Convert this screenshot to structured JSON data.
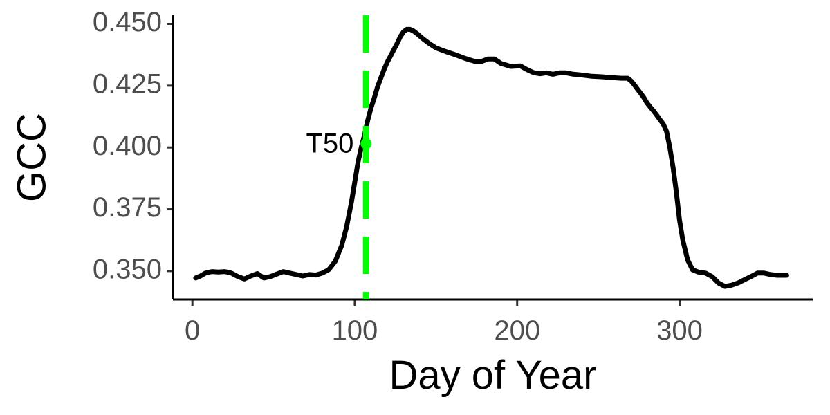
{
  "chart_data": {
    "type": "line",
    "title": "",
    "xlabel": "Day of Year",
    "ylabel": "GCC",
    "xlim": [
      -12,
      382
    ],
    "ylim": [
      0.3385,
      0.4535
    ],
    "xticks": [
      0,
      100,
      200,
      300
    ],
    "xtick_labels": [
      "0",
      "100",
      "200",
      "300"
    ],
    "yticks": [
      0.35,
      0.375,
      0.4,
      0.425,
      0.45
    ],
    "ytick_labels": [
      "0.350",
      "0.375",
      "0.400",
      "0.425",
      "0.450"
    ],
    "grid": false,
    "series": [
      {
        "color": "#000000",
        "x": [
          2,
          5,
          8,
          12,
          16,
          20,
          24,
          28,
          32,
          36,
          40,
          44,
          48,
          52,
          56,
          60,
          64,
          68,
          72,
          76,
          80,
          84,
          88,
          92,
          95,
          98,
          100,
          102,
          104,
          106,
          108,
          110,
          112,
          114,
          116,
          118,
          120,
          122,
          124,
          126,
          128,
          130,
          132,
          134,
          136,
          138,
          142,
          146,
          150,
          156,
          162,
          168,
          174,
          178,
          182,
          186,
          190,
          196,
          202,
          206,
          210,
          214,
          218,
          222,
          226,
          230,
          234,
          240,
          246,
          252,
          258,
          264,
          268,
          270,
          272,
          274,
          276,
          278,
          280,
          282,
          284,
          286,
          288,
          290,
          292,
          294,
          296,
          298,
          300,
          302,
          305,
          308,
          312,
          316,
          320,
          324,
          328,
          332,
          336,
          340,
          344,
          348,
          352,
          356,
          360,
          364,
          366
        ],
        "y": [
          0.3472,
          0.348,
          0.3492,
          0.3498,
          0.3496,
          0.3498,
          0.3492,
          0.3478,
          0.3468,
          0.348,
          0.349,
          0.3472,
          0.3478,
          0.3488,
          0.3498,
          0.3492,
          0.3486,
          0.348,
          0.3486,
          0.3484,
          0.3492,
          0.3506,
          0.354,
          0.3605,
          0.368,
          0.378,
          0.386,
          0.394,
          0.4,
          0.405,
          0.411,
          0.416,
          0.42,
          0.4245,
          0.428,
          0.4315,
          0.4345,
          0.437,
          0.4395,
          0.442,
          0.4448,
          0.4468,
          0.4478,
          0.4478,
          0.4472,
          0.4462,
          0.444,
          0.442,
          0.4403,
          0.4388,
          0.4375,
          0.436,
          0.4348,
          0.4348,
          0.4358,
          0.4358,
          0.434,
          0.4328,
          0.433,
          0.4315,
          0.4303,
          0.4298,
          0.4302,
          0.4296,
          0.4302,
          0.4302,
          0.4297,
          0.4293,
          0.4288,
          0.4286,
          0.4283,
          0.428,
          0.428,
          0.427,
          0.4255,
          0.4237,
          0.422,
          0.4202,
          0.418,
          0.4163,
          0.4148,
          0.413,
          0.4112,
          0.4095,
          0.4065,
          0.4,
          0.392,
          0.382,
          0.3705,
          0.3625,
          0.3545,
          0.3505,
          0.3495,
          0.3492,
          0.3478,
          0.3452,
          0.3438,
          0.3443,
          0.3452,
          0.3465,
          0.3478,
          0.3492,
          0.3492,
          0.3486,
          0.3483,
          0.3483,
          0.3483
        ]
      }
    ],
    "vline": {
      "x": 107,
      "color": "#00ff00",
      "style": "dashed"
    },
    "annotations": [
      {
        "label": "T50",
        "x": 107,
        "y": 0.4015,
        "color": "#00ff00"
      }
    ]
  }
}
